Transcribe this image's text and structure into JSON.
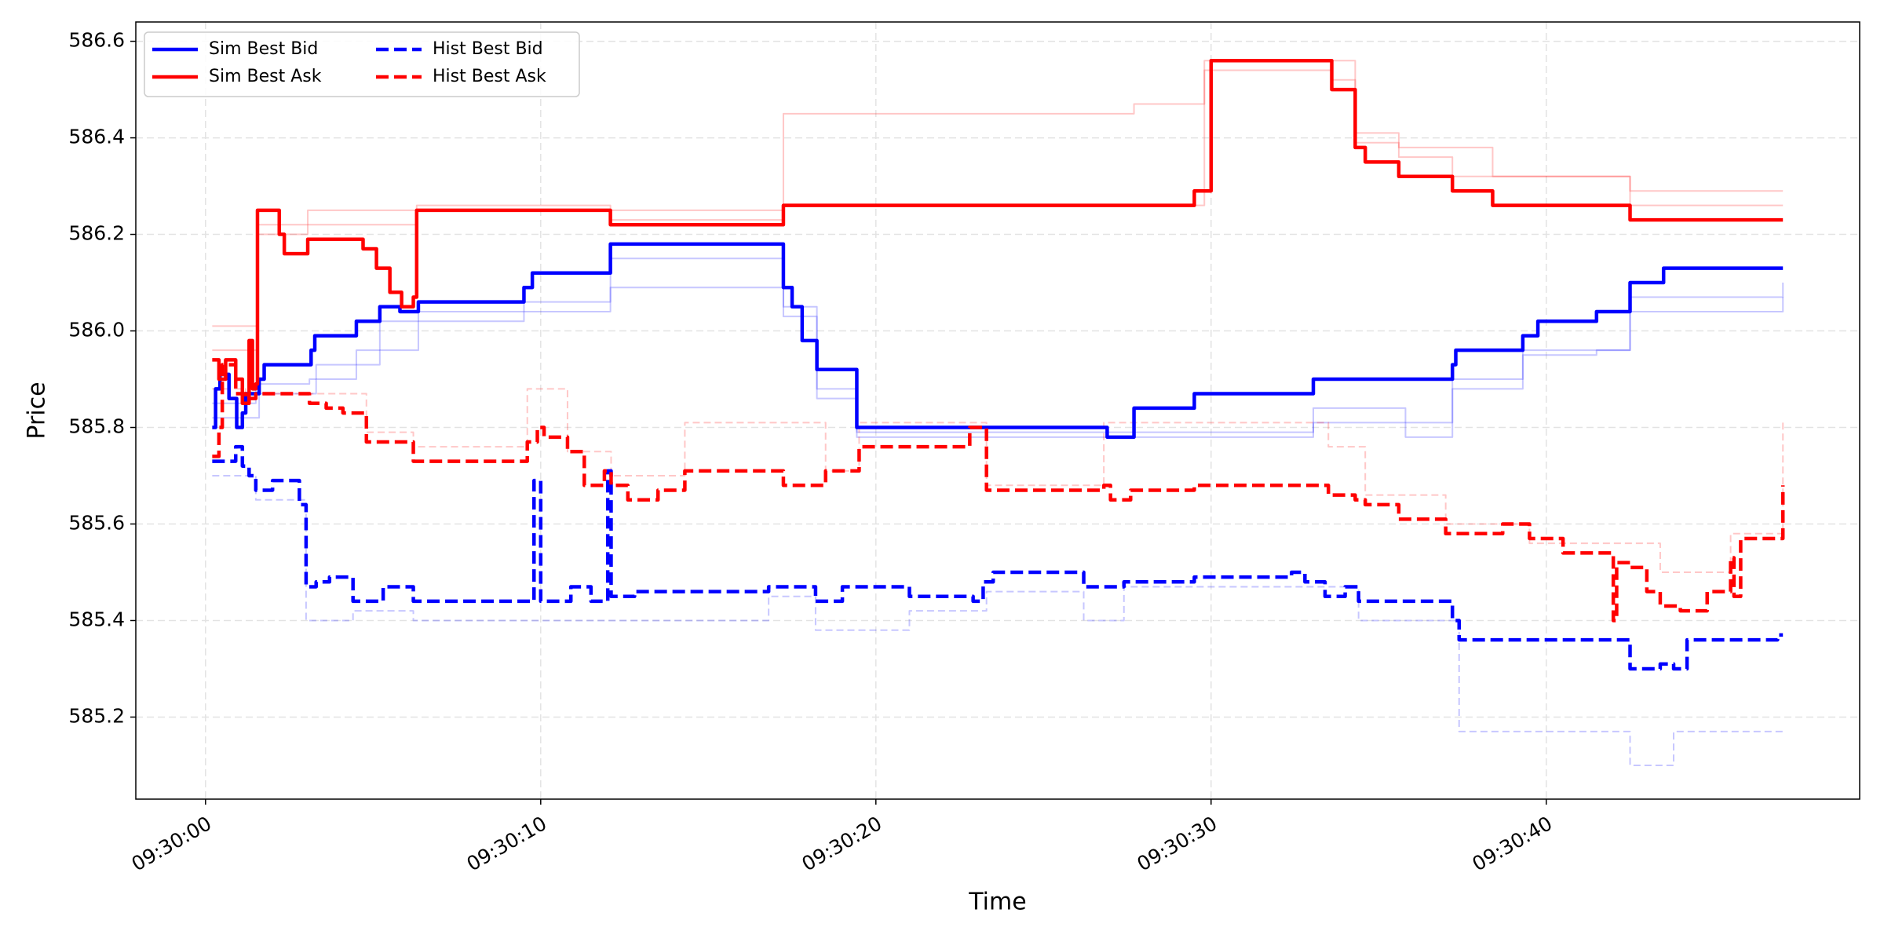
{
  "chart_data": {
    "type": "line",
    "drawstyle": "steps-post",
    "x_label": "Time",
    "y_label": "Price",
    "xlim": [
      -2.08,
      49.35
    ],
    "ylim": [
      585.03,
      586.64
    ],
    "xticks": [
      {
        "value": 0,
        "label": "09:30:00"
      },
      {
        "value": 10,
        "label": "09:30:10"
      },
      {
        "value": 20,
        "label": "09:30:20"
      },
      {
        "value": 30,
        "label": "09:30:30"
      },
      {
        "value": 40,
        "label": "09:30:40"
      }
    ],
    "yticks": [
      585.2,
      585.4,
      585.6,
      585.8,
      {
        "value": 586,
        "label": "586.0"
      },
      586.2,
      586.4,
      586.6
    ],
    "grid": true,
    "legend": "upper left",
    "legend_columns": 2,
    "series": [
      {
        "name": "Sim Best Bid",
        "color": "#0000ff",
        "dashed": false,
        "x": [
          0.2,
          0.3,
          0.43,
          0.7,
          0.93,
          1.1,
          1.2,
          1.6,
          1.75,
          3.15,
          3.26,
          4.5,
          5.2,
          5.8,
          6.35,
          9.5,
          9.75,
          12.08,
          17.24,
          17.5,
          17.8,
          18.24,
          19.43,
          26.9,
          27.7,
          29.5,
          33.05,
          37.2,
          37.3,
          39.3,
          39.75,
          41.5,
          42.5,
          43.5,
          47.06
        ],
        "values": [
          585.8,
          585.88,
          585.91,
          585.86,
          585.8,
          585.83,
          585.87,
          585.9,
          585.93,
          585.96,
          585.99,
          586.02,
          586.05,
          586.04,
          586.06,
          586.09,
          586.12,
          586.18,
          586.09,
          586.05,
          585.98,
          585.92,
          585.8,
          585.78,
          585.84,
          585.87,
          585.9,
          585.93,
          585.96,
          585.99,
          586.02,
          586.04,
          586.1,
          586.13,
          586.13
        ]
      },
      {
        "name": "Sim Best Ask",
        "color": "#ff0000",
        "dashed": false,
        "x": [
          0.2,
          0.4,
          0.6,
          0.9,
          1.1,
          1.3,
          1.4,
          1.5,
          1.55,
          2.2,
          2.35,
          3.05,
          4.7,
          5.1,
          5.5,
          5.85,
          6.2,
          6.3,
          12.08,
          17.24,
          29.5,
          30.0,
          33.6,
          34.3,
          34.6,
          35.6,
          37.2,
          38.4,
          42.5,
          47.06
        ],
        "values": [
          585.94,
          585.9,
          585.94,
          585.9,
          585.85,
          585.98,
          585.88,
          585.89,
          586.25,
          586.2,
          586.16,
          586.19,
          586.17,
          586.13,
          586.08,
          586.05,
          586.07,
          586.25,
          586.22,
          586.26,
          586.29,
          586.56,
          586.5,
          586.38,
          586.35,
          586.32,
          586.29,
          586.26,
          586.23,
          586.23
        ]
      },
      {
        "name": "Hist Best Bid",
        "color": "#0000ff",
        "dashed": true,
        "x": [
          0.2,
          0.9,
          1.1,
          1.3,
          1.5,
          2.0,
          2.8,
          3.0,
          3.3,
          3.7,
          4.4,
          5.3,
          6.2,
          9.8,
          10.0,
          10.9,
          11.5,
          12.0,
          12.1,
          12.8,
          16.8,
          18.2,
          19.0,
          21.0,
          22.9,
          23.2,
          23.5,
          26.2,
          27.4,
          29.5,
          32.4,
          32.8,
          33.4,
          34.0,
          34.4,
          37.2,
          37.4,
          42.5,
          43.4,
          43.8,
          44.2,
          46.9,
          47.06
        ],
        "values": [
          585.73,
          585.76,
          585.72,
          585.7,
          585.67,
          585.69,
          585.64,
          585.47,
          585.48,
          585.49,
          585.44,
          585.47,
          585.44,
          585.69,
          585.44,
          585.47,
          585.44,
          585.71,
          585.45,
          585.46,
          585.47,
          585.44,
          585.47,
          585.45,
          585.44,
          585.48,
          585.5,
          585.47,
          585.48,
          585.49,
          585.5,
          585.48,
          585.45,
          585.47,
          585.44,
          585.4,
          585.36,
          585.3,
          585.31,
          585.3,
          585.36,
          585.37,
          585.37
        ]
      },
      {
        "name": "Hist Best Ask",
        "color": "#ff0000",
        "dashed": true,
        "x": [
          0.2,
          0.4,
          0.5,
          0.9,
          1.2,
          1.5,
          3.1,
          3.6,
          4.1,
          4.8,
          6.2,
          9.6,
          9.9,
          10.1,
          10.8,
          11.3,
          11.9,
          12.1,
          12.6,
          13.5,
          14.3,
          17.24,
          18.5,
          19.5,
          22.8,
          23.3,
          26.8,
          27.0,
          27.6,
          29.5,
          32.5,
          33.5,
          34.3,
          34.6,
          35.6,
          37.0,
          38.7,
          39.5,
          40.5,
          42.0,
          42.1,
          42.5,
          43.0,
          43.4,
          44.0,
          44.8,
          45.5,
          45.6,
          45.8,
          46.9,
          47.06
        ],
        "values": [
          585.74,
          585.8,
          585.93,
          585.87,
          585.86,
          585.87,
          585.85,
          585.84,
          585.83,
          585.77,
          585.73,
          585.77,
          585.8,
          585.78,
          585.75,
          585.68,
          585.71,
          585.68,
          585.65,
          585.67,
          585.71,
          585.68,
          585.71,
          585.76,
          585.8,
          585.67,
          585.68,
          585.65,
          585.67,
          585.68,
          585.68,
          585.66,
          585.65,
          585.64,
          585.61,
          585.58,
          585.6,
          585.57,
          585.54,
          585.4,
          585.52,
          585.51,
          585.46,
          585.43,
          585.42,
          585.46,
          585.53,
          585.45,
          585.57,
          585.57,
          585.68
        ]
      },
      {
        "color": "#0000ff",
        "dashed": false,
        "alpha": 0.22,
        "x": [
          0.2,
          1.5,
          3.1,
          3.3,
          4.5,
          5.2,
          6.35,
          9.5,
          12.08,
          17.24,
          18.24,
          19.43,
          33.05,
          35.8,
          37.2,
          39.3,
          42.5,
          47.06
        ],
        "values": [
          585.85,
          585.89,
          585.9,
          585.93,
          585.96,
          586.02,
          586.04,
          586.06,
          586.15,
          586.05,
          585.88,
          585.79,
          585.84,
          585.81,
          585.9,
          585.96,
          586.07,
          586.1
        ]
      },
      {
        "color": "#0000ff",
        "dashed": false,
        "alpha": 0.22,
        "x": [
          0.2,
          1.6,
          3.3,
          4.5,
          5.2,
          6.35,
          9.5,
          12.08,
          17.24,
          18.24,
          19.43,
          33.05,
          35.8,
          37.2,
          39.3,
          41.5,
          42.5,
          47.06
        ],
        "values": [
          585.82,
          585.87,
          585.9,
          585.93,
          585.96,
          586.02,
          586.04,
          586.09,
          586.03,
          585.86,
          585.78,
          585.81,
          585.78,
          585.88,
          585.95,
          585.96,
          586.04,
          586.07
        ]
      },
      {
        "color": "#ff0000",
        "dashed": false,
        "alpha": 0.22,
        "x": [
          0.2,
          1.55,
          3.05,
          6.3,
          12.08,
          17.24,
          27.7,
          29.8,
          33.6,
          34.3,
          35.6,
          37.2,
          38.4,
          42.5,
          47.06
        ],
        "values": [
          586.01,
          586.22,
          586.25,
          586.26,
          586.25,
          586.45,
          586.47,
          586.56,
          586.56,
          586.41,
          586.38,
          586.38,
          586.32,
          586.29,
          586.29
        ]
      },
      {
        "color": "#ff0000",
        "dashed": false,
        "alpha": 0.22,
        "x": [
          0.2,
          1.55,
          3.05,
          6.3,
          12.08,
          17.24,
          29.8,
          33.6,
          34.3,
          35.6,
          37.2,
          42.5,
          47.06
        ],
        "values": [
          585.96,
          586.2,
          586.22,
          586.25,
          586.23,
          586.26,
          586.54,
          586.52,
          586.39,
          586.36,
          586.32,
          586.26,
          586.26
        ]
      },
      {
        "color": "#0000ff",
        "dashed": true,
        "alpha": 0.22,
        "x": [
          0.2,
          1.5,
          3.0,
          4.4,
          6.2,
          12.8,
          16.8,
          18.2,
          21.0,
          23.3,
          26.2,
          27.4,
          34.4,
          37.4,
          42.5,
          43.8,
          47.06
        ],
        "values": [
          585.7,
          585.65,
          585.4,
          585.42,
          585.4,
          585.4,
          585.45,
          585.38,
          585.42,
          585.46,
          585.4,
          585.47,
          585.4,
          585.17,
          585.1,
          585.17,
          585.17
        ]
      },
      {
        "color": "#ff0000",
        "dashed": true,
        "alpha": 0.22,
        "x": [
          0.2,
          1.2,
          3.1,
          4.8,
          6.2,
          9.6,
          10.8,
          12.1,
          14.3,
          17.24,
          18.5,
          19.5,
          23.3,
          26.8,
          33.5,
          34.6,
          37.0,
          39.5,
          42.5,
          43.4,
          45.5,
          47.06
        ],
        "values": [
          585.88,
          585.87,
          585.87,
          585.79,
          585.76,
          585.88,
          585.75,
          585.7,
          585.81,
          585.81,
          585.71,
          585.81,
          585.68,
          585.81,
          585.76,
          585.66,
          585.6,
          585.56,
          585.56,
          585.5,
          585.58,
          585.81
        ]
      }
    ]
  }
}
